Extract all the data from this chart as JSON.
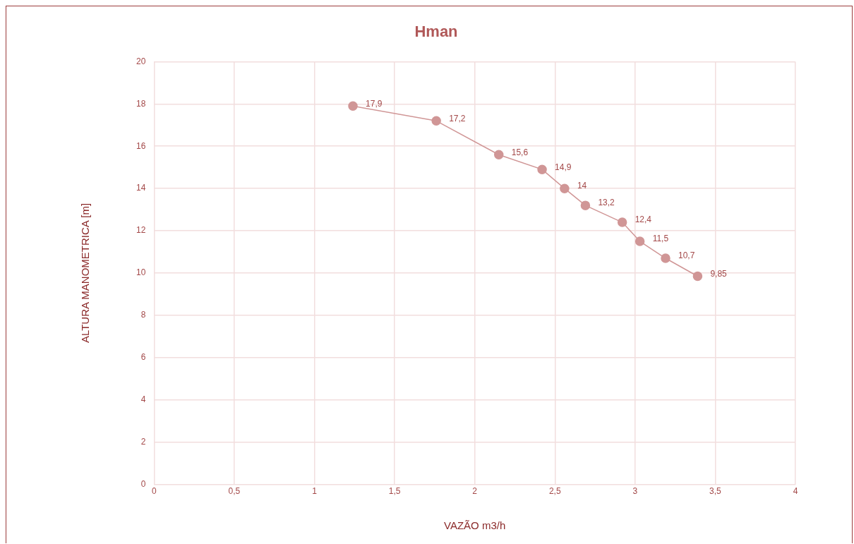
{
  "chart_data": {
    "type": "scatter",
    "title": "Hman",
    "xlabel": "VAZÃO m3/h",
    "ylabel": "ALTURA MANOMETRICA [m]",
    "series": [
      {
        "type": "line",
        "color": "#d09696",
        "x": [
          1.24,
          1.76,
          2.15,
          2.42,
          2.56,
          2.69,
          2.92,
          3.03,
          3.19,
          3.39
        ],
        "values": [
          17.9,
          17.2,
          15.6,
          14.9,
          14,
          13.2,
          12.4,
          11.5,
          10.7,
          9.85
        ],
        "value_labels": [
          "17,9",
          "17,2",
          "15,6",
          "14,9",
          "14",
          "13,2",
          "12,4",
          "11,5",
          "10,7",
          "9,85"
        ]
      }
    ],
    "xlim": [
      0,
      4
    ],
    "xticks": [
      0,
      {
        "value": 0.5,
        "label": "0,5"
      },
      1,
      {
        "value": 1.5,
        "label": "1,5"
      },
      2,
      {
        "value": 2.5,
        "label": "2,5"
      },
      3,
      {
        "value": 3.5,
        "label": "3,5"
      },
      4
    ],
    "ylim": [
      0,
      20
    ],
    "yticks": [
      0,
      2,
      4,
      6,
      8,
      10,
      12,
      14,
      16,
      18,
      20
    ],
    "grid": true,
    "legend": false,
    "marker": "circle",
    "line_style": "solid"
  }
}
